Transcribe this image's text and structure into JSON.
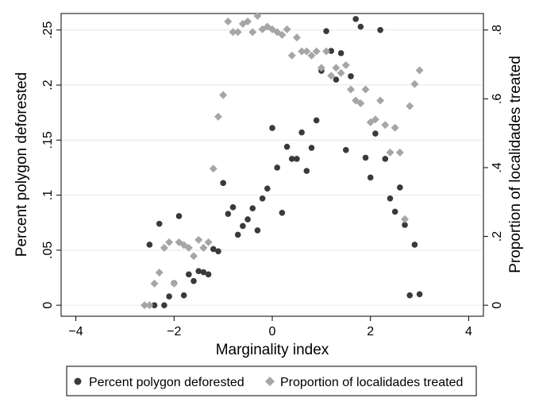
{
  "chart_data": {
    "type": "scatter",
    "title": "",
    "xlabel": "Marginality index",
    "ylabel_left": "Percent polygon deforested",
    "ylabel_right": "Proportion of localidades treated",
    "xlim": [
      -4.3,
      4.3
    ],
    "ylim_left": [
      -0.01,
      0.265
    ],
    "ylim_right": [
      -0.032,
      0.848
    ],
    "x_ticks": [
      -4,
      -2,
      0,
      2,
      4
    ],
    "x_tick_labels": [
      "−4",
      "−2",
      "0",
      "2",
      "4"
    ],
    "y_left_ticks": [
      0,
      0.05,
      0.1,
      0.15,
      0.2,
      0.25
    ],
    "y_left_tick_labels": [
      "0",
      ".05",
      ".1",
      ".15",
      ".2",
      ".25"
    ],
    "y_right_ticks": [
      0,
      0.2,
      0.4,
      0.6,
      0.8
    ],
    "y_right_tick_labels": [
      "0",
      ".2",
      ".4",
      ".6",
      ".8"
    ],
    "grid": true,
    "legend_position": "bottom",
    "colors": {
      "deforested": "#3a3a3a",
      "treated": "#a6a6a6"
    },
    "series": [
      {
        "name": "Percent polygon deforested",
        "axis": "left",
        "marker": "circle",
        "points": [
          [
            -2.5,
            0.055
          ],
          [
            -2.4,
            0.0
          ],
          [
            -2.3,
            0.074
          ],
          [
            -2.2,
            0.0
          ],
          [
            -2.1,
            0.008
          ],
          [
            -2.0,
            0.02
          ],
          [
            -1.9,
            0.081
          ],
          [
            -1.8,
            0.009
          ],
          [
            -1.7,
            0.028
          ],
          [
            -1.6,
            0.022
          ],
          [
            -1.5,
            0.031
          ],
          [
            -1.4,
            0.03
          ],
          [
            -1.3,
            0.028
          ],
          [
            -1.2,
            0.051
          ],
          [
            -1.1,
            0.049
          ],
          [
            -1.0,
            0.111
          ],
          [
            -0.9,
            0.083
          ],
          [
            -0.8,
            0.089
          ],
          [
            -0.7,
            0.064
          ],
          [
            -0.6,
            0.072
          ],
          [
            -0.5,
            0.078
          ],
          [
            -0.4,
            0.088
          ],
          [
            -0.3,
            0.068
          ],
          [
            -0.2,
            0.097
          ],
          [
            -0.1,
            0.106
          ],
          [
            0.0,
            0.161
          ],
          [
            0.1,
            0.125
          ],
          [
            0.2,
            0.084
          ],
          [
            0.3,
            0.144
          ],
          [
            0.4,
            0.133
          ],
          [
            0.5,
            0.133
          ],
          [
            0.6,
            0.157
          ],
          [
            0.7,
            0.122
          ],
          [
            0.8,
            0.143
          ],
          [
            0.9,
            0.168
          ],
          [
            1.0,
            0.213
          ],
          [
            1.1,
            0.249
          ],
          [
            1.2,
            0.231
          ],
          [
            1.3,
            0.205
          ],
          [
            1.4,
            0.229
          ],
          [
            1.5,
            0.141
          ],
          [
            1.6,
            0.208
          ],
          [
            1.7,
            0.26
          ],
          [
            1.8,
            0.253
          ],
          [
            1.9,
            0.134
          ],
          [
            2.0,
            0.116
          ],
          [
            2.1,
            0.156
          ],
          [
            2.2,
            0.25
          ],
          [
            2.3,
            0.133
          ],
          [
            2.4,
            0.097
          ],
          [
            2.5,
            0.085
          ],
          [
            2.6,
            0.107
          ],
          [
            2.7,
            0.073
          ],
          [
            2.8,
            0.009
          ],
          [
            2.9,
            0.055
          ],
          [
            3.0,
            0.01
          ]
        ]
      },
      {
        "name": "Proportion of localidades treated",
        "axis": "right",
        "marker": "diamond",
        "points": [
          [
            -2.6,
            0.0
          ],
          [
            -2.5,
            0.0
          ],
          [
            -2.4,
            0.063
          ],
          [
            -2.3,
            0.095
          ],
          [
            -2.2,
            0.167
          ],
          [
            -2.1,
            0.183
          ],
          [
            -2.0,
            0.063
          ],
          [
            -1.9,
            0.183
          ],
          [
            -1.8,
            0.175
          ],
          [
            -1.7,
            0.167
          ],
          [
            -1.6,
            0.143
          ],
          [
            -1.5,
            0.19
          ],
          [
            -1.4,
            0.167
          ],
          [
            -1.3,
            0.183
          ],
          [
            -1.2,
            0.397
          ],
          [
            -1.1,
            0.548
          ],
          [
            -1.0,
            0.611
          ],
          [
            -0.9,
            0.825
          ],
          [
            -0.8,
            0.794
          ],
          [
            -0.7,
            0.794
          ],
          [
            -0.6,
            0.818
          ],
          [
            -0.5,
            0.825
          ],
          [
            -0.4,
            0.794
          ],
          [
            -0.3,
            0.841
          ],
          [
            -0.2,
            0.802
          ],
          [
            -0.1,
            0.81
          ],
          [
            0.0,
            0.802
          ],
          [
            0.1,
            0.794
          ],
          [
            0.2,
            0.786
          ],
          [
            0.3,
            0.802
          ],
          [
            0.4,
            0.726
          ],
          [
            0.5,
            0.778
          ],
          [
            0.6,
            0.738
          ],
          [
            0.7,
            0.738
          ],
          [
            0.8,
            0.726
          ],
          [
            0.9,
            0.738
          ],
          [
            1.0,
            0.69
          ],
          [
            1.1,
            0.738
          ],
          [
            1.2,
            0.667
          ],
          [
            1.3,
            0.69
          ],
          [
            1.4,
            0.675
          ],
          [
            1.5,
            0.698
          ],
          [
            1.6,
            0.627
          ],
          [
            1.7,
            0.595
          ],
          [
            1.8,
            0.587
          ],
          [
            1.9,
            0.627
          ],
          [
            2.0,
            0.532
          ],
          [
            2.1,
            0.54
          ],
          [
            2.2,
            0.595
          ],
          [
            2.3,
            0.524
          ],
          [
            2.4,
            0.444
          ],
          [
            2.5,
            0.516
          ],
          [
            2.6,
            0.444
          ],
          [
            2.7,
            0.25
          ],
          [
            2.8,
            0.579
          ],
          [
            2.9,
            0.643
          ],
          [
            3.0,
            0.683
          ]
        ]
      }
    ]
  }
}
